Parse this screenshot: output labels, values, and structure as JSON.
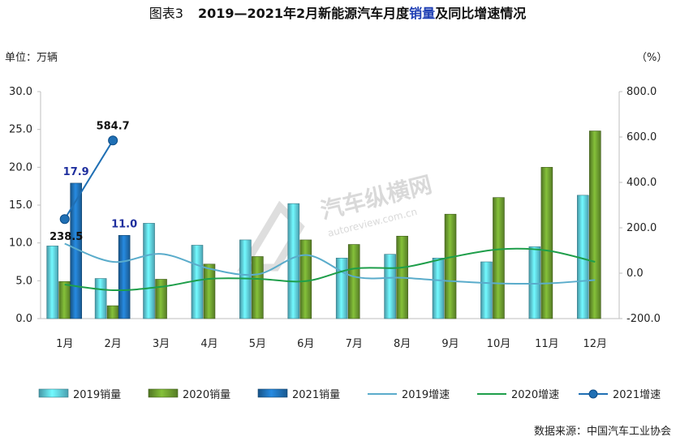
{
  "title": {
    "prefix": "图表3",
    "main": "2019—2021年2月新能源汽车月度",
    "highlight": "销量",
    "suffix": "及同比增速情况"
  },
  "left_unit": "单位：万辆",
  "right_unit": "（%）",
  "source": "数据来源：中国汽车工业协会",
  "watermark": {
    "text": "汽车纵横网",
    "url": "autoreview.com.cn"
  },
  "chart_data": {
    "type": "bar",
    "categories": [
      "1月",
      "2月",
      "3月",
      "4月",
      "5月",
      "6月",
      "7月",
      "8月",
      "9月",
      "10月",
      "11月",
      "12月"
    ],
    "y_left": {
      "range": [
        0,
        30
      ],
      "ticks": [
        "0.0",
        "5.0",
        "10.0",
        "15.0",
        "20.0",
        "25.0",
        "30.0"
      ]
    },
    "y_right": {
      "range": [
        -200,
        800
      ],
      "ticks": [
        "-200.0",
        "0.0",
        "200.0",
        "400.0",
        "600.0",
        "800.0"
      ]
    },
    "bars": [
      {
        "name": "2019销量",
        "color": "#5cc8dc",
        "values": [
          9.6,
          5.3,
          12.6,
          9.7,
          10.4,
          15.2,
          8.0,
          8.5,
          8.0,
          7.5,
          9.5,
          16.3
        ]
      },
      {
        "name": "2020销量",
        "color": "#6a9a2e",
        "values": [
          4.9,
          1.7,
          5.2,
          7.2,
          8.2,
          10.4,
          9.8,
          10.9,
          13.8,
          16.0,
          20.0,
          24.8
        ]
      },
      {
        "name": "2021销量",
        "color": "#1f6fb4",
        "values": [
          17.9,
          11.0,
          null,
          null,
          null,
          null,
          null,
          null,
          null,
          null,
          null,
          null
        ]
      }
    ],
    "lines": [
      {
        "name": "2019增速",
        "color": "#5aaccb",
        "values": [
          130,
          50,
          85,
          20,
          -5,
          80,
          -15,
          -20,
          -35,
          -45,
          -45,
          -30
        ]
      },
      {
        "name": "2020增速",
        "color": "#1e9e4a",
        "values": [
          -50,
          -75,
          -60,
          -25,
          -25,
          -35,
          20,
          25,
          70,
          105,
          100,
          50
        ]
      },
      {
        "name": "2021增速",
        "color": "#1f6fb4",
        "values": [
          238.5,
          584.7,
          null,
          null,
          null,
          null,
          null,
          null,
          null,
          null,
          null,
          null
        ]
      }
    ],
    "data_labels": [
      {
        "series": "2021销量",
        "index": 0,
        "text": "17.9",
        "color": "#1f2f9e"
      },
      {
        "series": "2021销量",
        "index": 1,
        "text": "11.0",
        "color": "#1f2f9e"
      },
      {
        "series": "2021增速",
        "index": 0,
        "text": "238.5",
        "color": "#111111"
      },
      {
        "series": "2021增速",
        "index": 1,
        "text": "584.7",
        "color": "#111111"
      }
    ],
    "legend": {
      "position": "bottom"
    },
    "grid": false
  }
}
